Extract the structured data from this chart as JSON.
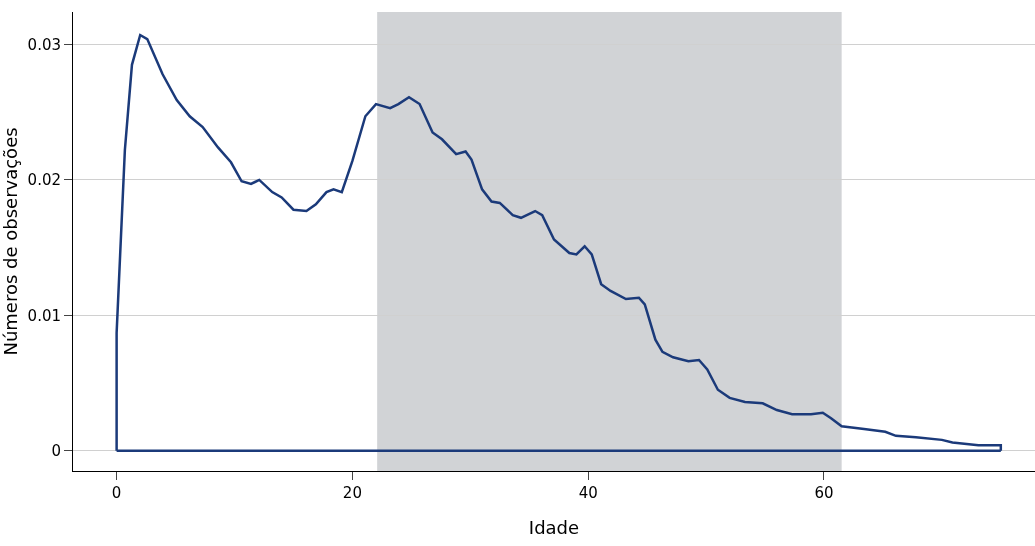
{
  "chart_data": {
    "type": "line",
    "xlabel": "Idade",
    "ylabel": "Números de observações",
    "series": [
      {
        "color": "#1b3a7a",
        "x": [
          0,
          0,
          0.7,
          1.3,
          2.0,
          2.6,
          3.9,
          5.1,
          6.2,
          7.3,
          8.6,
          9.7,
          10.6,
          11.4,
          12.1,
          13.2,
          14.0,
          15.0,
          16.1,
          16.9,
          17.8,
          18.4,
          19.1,
          20.0,
          21.1,
          22.0,
          23.2,
          23.9,
          24.8,
          25.7,
          26.8,
          27.6,
          28.8,
          29.6,
          30.1,
          31.0,
          31.8,
          32.5,
          33.6,
          34.3,
          35.5,
          36.1,
          37.1,
          38.4,
          39.0,
          39.7,
          40.3,
          41.1,
          41.9,
          43.2,
          44.3,
          44.8,
          45.7,
          46.3,
          47.2,
          48.5,
          49.4,
          50.1,
          51.0,
          52.0,
          53.3,
          54.8,
          56.0,
          57.3,
          58.9,
          59.9,
          60.6,
          61.5,
          63.4,
          65.2,
          66.1,
          67.8,
          70.0,
          70.9,
          73.1,
          75.0,
          75.0
        ],
        "values": [
          0,
          0.0087,
          0.0222,
          0.0285,
          0.0307,
          0.0304,
          0.0278,
          0.0259,
          0.0247,
          0.0239,
          0.0224,
          0.0213,
          0.0199,
          0.0197,
          0.02,
          0.0191,
          0.0187,
          0.0178,
          0.0177,
          0.0182,
          0.0191,
          0.0193,
          0.0191,
          0.0214,
          0.0247,
          0.0256,
          0.0253,
          0.0256,
          0.0261,
          0.0256,
          0.0235,
          0.023,
          0.0219,
          0.0221,
          0.0215,
          0.0193,
          0.0184,
          0.0183,
          0.0174,
          0.0172,
          0.0177,
          0.0174,
          0.0156,
          0.0146,
          0.0145,
          0.0151,
          0.0145,
          0.0123,
          0.0118,
          0.0112,
          0.0113,
          0.0108,
          0.0082,
          0.0073,
          0.0069,
          0.0066,
          0.0067,
          0.006,
          0.0045,
          0.0039,
          0.0036,
          0.0035,
          0.003,
          0.0027,
          0.0027,
          0.0028,
          0.0024,
          0.0018,
          0.0016,
          0.0014,
          0.0011,
          0.001,
          0.0008,
          0.0006,
          0.0004,
          0.0004,
          0
        ]
      },
      {
        "color": "#1b3a7a",
        "x": [
          0,
          75.0
        ],
        "values": [
          0,
          0
        ]
      }
    ],
    "bands": [
      {
        "axis": "x",
        "from": 22.1,
        "to": 61.5,
        "color": "#d1d3d6"
      }
    ],
    "xlim": [
      -3.7,
      77.9
    ],
    "xticks": [
      0,
      20,
      40,
      60
    ],
    "ylim": [
      -0.0015,
      0.0324
    ],
    "yticks": [
      {
        "value": 0,
        "label": "0"
      },
      0.01,
      0.02,
      0.03
    ],
    "grid": "y",
    "marker": "none",
    "line_style": "solid"
  }
}
